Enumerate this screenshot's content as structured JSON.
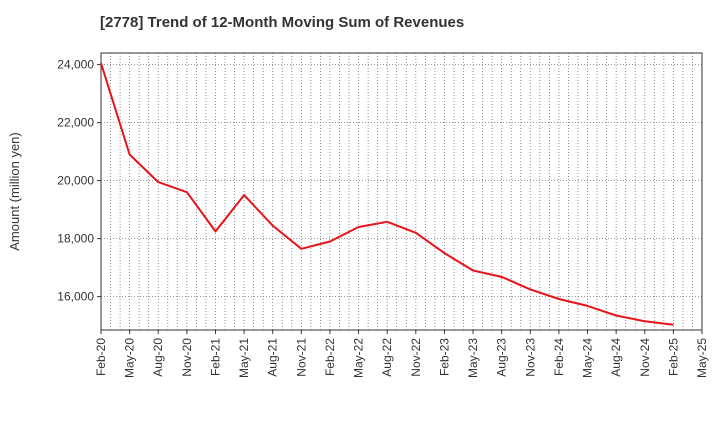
{
  "chart_data": {
    "type": "line",
    "title": "[2778]  Trend of 12-Month Moving Sum of Revenues",
    "xlabel": "",
    "ylabel": "Amount (million yen)",
    "x_ticks": [
      "Feb-20",
      "May-20",
      "Aug-20",
      "Nov-20",
      "Feb-21",
      "May-21",
      "Aug-21",
      "Nov-21",
      "Feb-22",
      "May-22",
      "Aug-22",
      "Nov-22",
      "Feb-23",
      "May-23",
      "Aug-23",
      "Nov-23",
      "Feb-24",
      "May-24",
      "Aug-24",
      "Nov-24",
      "Feb-25",
      "May-25"
    ],
    "y_ticks": [
      "16,000",
      "18,000",
      "20,000",
      "22,000",
      "24,000"
    ],
    "y_tick_values": [
      16000,
      18000,
      20000,
      22000,
      24000
    ],
    "ylim": [
      14850,
      24400
    ],
    "grid": true,
    "line_color": "#e8141b",
    "series": [
      {
        "x": [
          "Feb-20",
          "May-20",
          "Aug-20",
          "Nov-20",
          "Feb-21",
          "May-21",
          "Aug-21",
          "Nov-21",
          "Feb-22",
          "May-22",
          "Aug-22",
          "Nov-22",
          "Feb-23",
          "May-23",
          "Aug-23",
          "Nov-23",
          "Feb-24",
          "May-24",
          "Aug-24",
          "Nov-24",
          "Feb-25"
        ],
        "values": [
          24050,
          20900,
          19950,
          19600,
          18250,
          19500,
          18450,
          17650,
          17900,
          18400,
          18580,
          18200,
          17500,
          16900,
          16680,
          16250,
          15920,
          15680,
          15350,
          15150,
          15030
        ]
      }
    ]
  }
}
